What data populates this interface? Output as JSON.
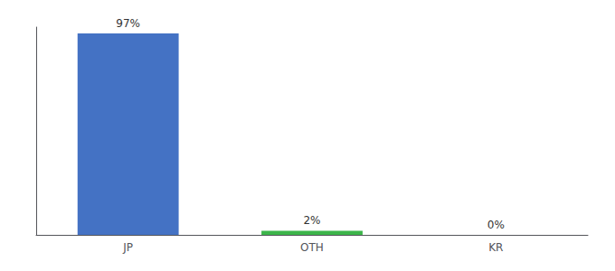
{
  "chart_data": {
    "type": "bar",
    "categories": [
      "JP",
      "OTH",
      "KR"
    ],
    "values": [
      97,
      2,
      0
    ],
    "value_labels": [
      "97%",
      "2%",
      "0%"
    ],
    "colors": [
      "#4472c4",
      "#3cb54a",
      "#4472c4"
    ],
    "ylim": [
      0,
      100
    ],
    "data_labels": true,
    "tick_labels": "x",
    "grid": false
  }
}
